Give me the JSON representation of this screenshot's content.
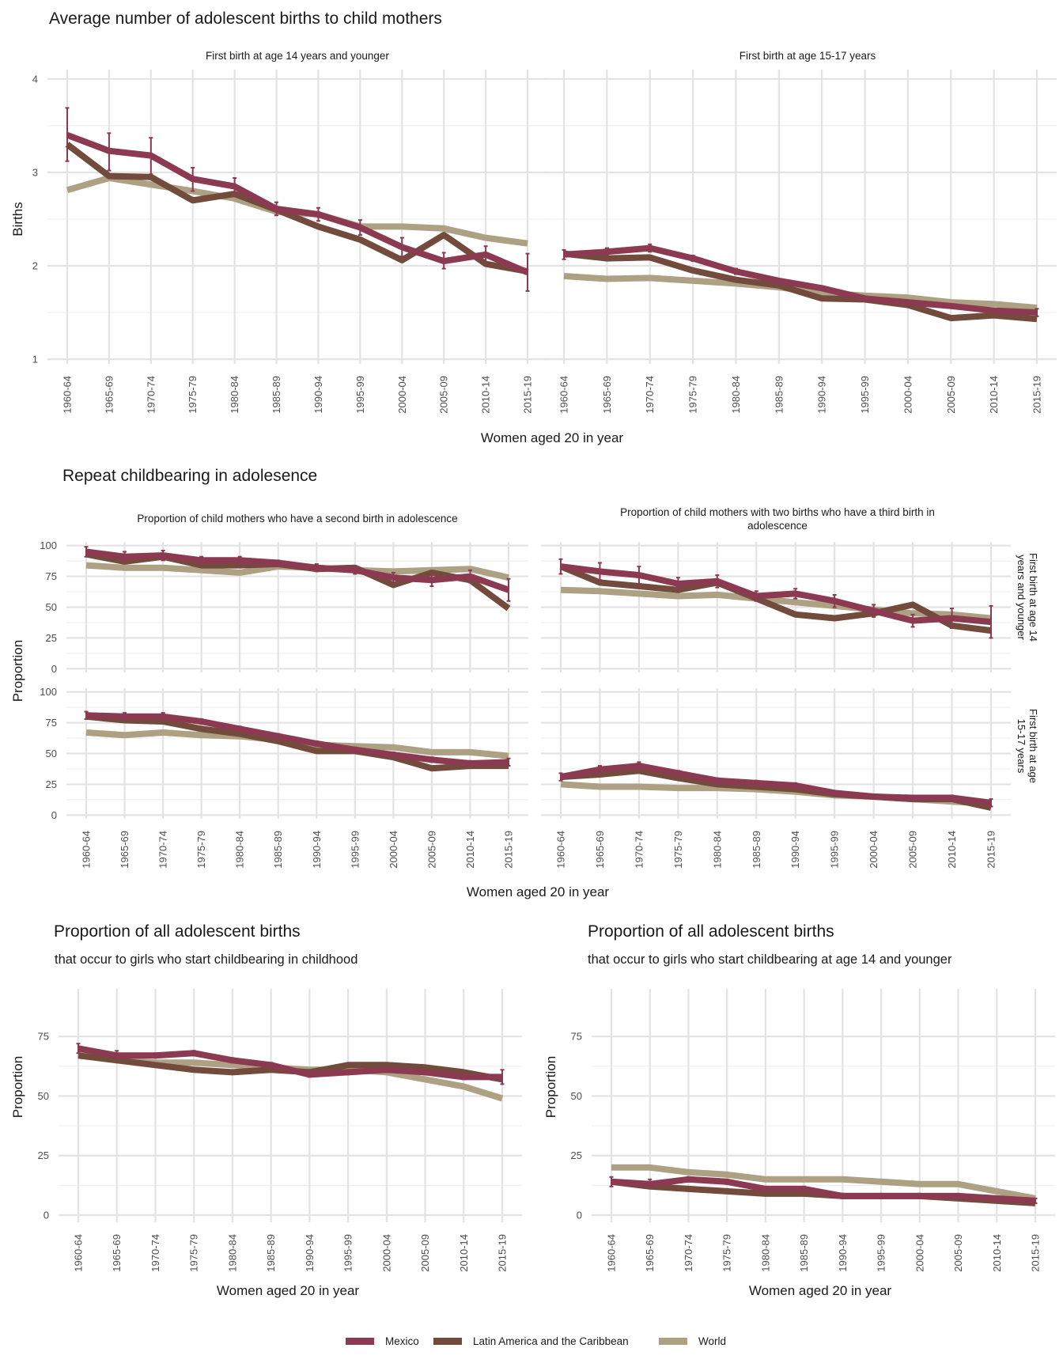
{
  "colors": {
    "mexico": "#8b3a52",
    "lac": "#724b3d",
    "world": "#aea083"
  },
  "legend": [
    {
      "key": "mexico",
      "label": "Mexico"
    },
    {
      "key": "lac",
      "label": "Latin America and the Caribbean"
    },
    {
      "key": "world",
      "label": "World"
    }
  ],
  "categories": [
    "1960-64",
    "1965-69",
    "1970-74",
    "1975-79",
    "1980-84",
    "1985-89",
    "1990-94",
    "1995-99",
    "2000-04",
    "2005-09",
    "2010-14",
    "2015-19"
  ],
  "section1": {
    "title": "Average number of adolescent births to child mothers",
    "ylabel": "Births",
    "xlabel": "Women aged 20 in year",
    "yticks": [
      "1",
      "2",
      "3",
      "4"
    ]
  },
  "section2": {
    "title": "Repeat childbearing in adolesence",
    "ylabel": "Proportion",
    "xlabel": "Women aged 20 in year",
    "yticks": [
      "0",
      "25",
      "50",
      "75",
      "100"
    ],
    "col_titles": [
      "Proportion of child mothers who have a second birth in adolescence",
      "Proportion of child mothers with two births who have a third birth in",
      "adolescence"
    ],
    "row_strips": [
      "First birth at age 14",
      "years and younger",
      "First birth at age",
      "15-17 years"
    ]
  },
  "section3": {
    "ylabel": "Proportion",
    "xlabel": "Women aged 20 in year",
    "yticks": [
      "0",
      "25",
      "50",
      "75"
    ],
    "left_title": "Proportion of all adolescent births",
    "left_subtitle": "that occur to girls who start childbearing in childhood",
    "right_title": "Proportion of all adolescent births",
    "right_subtitle": "that occur to girls who start childbearing at age 14 and younger"
  },
  "chart_data": [
    {
      "type": "line",
      "title": "Average number of adolescent births to child mothers",
      "subtitle": "First birth at age 14 years and younger",
      "xlabel": "Women aged 20 in year",
      "ylabel": "Births",
      "ylim": [
        0.95,
        4.1
      ],
      "series": [
        {
          "name": "Mexico",
          "values": [
            3.4,
            3.23,
            3.18,
            2.93,
            2.85,
            2.61,
            2.55,
            2.41,
            2.2,
            2.05,
            2.12,
            1.93
          ],
          "err_lo": [
            3.12,
            3.02,
            2.98,
            2.8,
            2.75,
            2.54,
            2.48,
            2.33,
            2.1,
            1.97,
            2.04,
            1.73
          ],
          "err_hi": [
            3.69,
            3.42,
            3.37,
            3.05,
            2.94,
            2.68,
            2.62,
            2.49,
            2.3,
            2.14,
            2.21,
            2.13
          ]
        },
        {
          "name": "Latin America and the Caribbean",
          "values": [
            3.3,
            2.96,
            2.95,
            2.7,
            2.77,
            2.6,
            2.42,
            2.28,
            2.06,
            2.33,
            2.02,
            1.94
          ]
        },
        {
          "name": "World",
          "values": [
            2.81,
            2.94,
            2.87,
            2.8,
            2.72,
            2.58,
            2.55,
            2.42,
            2.42,
            2.4,
            2.3,
            2.24
          ]
        }
      ]
    },
    {
      "type": "line",
      "subtitle": "First birth at age 15-17 years",
      "xlabel": "Women aged 20 in year",
      "ylabel": "Births",
      "ylim": [
        0.95,
        4.1
      ],
      "series": [
        {
          "name": "Mexico",
          "values": [
            2.12,
            2.15,
            2.19,
            2.08,
            1.94,
            1.84,
            1.76,
            1.65,
            1.61,
            1.57,
            1.52,
            1.5
          ],
          "err_lo": [
            2.07,
            2.11,
            2.15,
            2.05,
            1.91,
            1.82,
            1.74,
            1.63,
            1.59,
            1.55,
            1.5,
            1.46
          ],
          "err_hi": [
            2.17,
            2.19,
            2.23,
            2.11,
            1.97,
            1.86,
            1.78,
            1.67,
            1.63,
            1.59,
            1.54,
            1.54
          ]
        },
        {
          "name": "Latin America and the Caribbean",
          "values": [
            2.13,
            2.08,
            2.09,
            1.95,
            1.85,
            1.79,
            1.65,
            1.64,
            1.58,
            1.44,
            1.47,
            1.43
          ]
        },
        {
          "name": "World",
          "values": [
            1.89,
            1.86,
            1.87,
            1.84,
            1.81,
            1.77,
            1.71,
            1.68,
            1.66,
            1.61,
            1.59,
            1.55
          ]
        }
      ]
    },
    {
      "type": "line",
      "title": "Repeat childbearing in adolesence",
      "subtitle": "Proportion of child mothers who have a second birth in adolescence — First birth at age 14 years and younger",
      "xlabel": "Women aged 20 in year",
      "ylabel": "Proportion",
      "ylim": [
        -3,
        103
      ],
      "series": [
        {
          "name": "Mexico",
          "values": [
            95,
            91,
            92,
            88,
            88,
            86,
            82,
            80,
            74,
            72,
            75,
            64
          ],
          "err_lo": [
            91,
            87,
            88,
            85,
            85,
            84,
            79,
            77,
            70,
            67,
            70,
            55
          ],
          "err_hi": [
            99,
            95,
            96,
            91,
            91,
            88,
            85,
            83,
            78,
            77,
            80,
            73
          ]
        },
        {
          "name": "Latin America and the Caribbean",
          "values": [
            93,
            87,
            91,
            84,
            84,
            85,
            81,
            82,
            68,
            78,
            72,
            49
          ]
        },
        {
          "name": "World",
          "values": [
            84,
            82,
            82,
            80,
            78,
            83,
            82,
            80,
            79,
            80,
            81,
            74
          ]
        }
      ]
    },
    {
      "type": "line",
      "subtitle": "Proportion of child mothers with two births who have a third birth in adolescence — First birth at age 14 years and younger",
      "xlabel": "Women aged 20 in year",
      "ylabel": "Proportion",
      "ylim": [
        -3,
        103
      ],
      "series": [
        {
          "name": "Mexico",
          "values": [
            83,
            79,
            76,
            69,
            71,
            59,
            61,
            55,
            47,
            39,
            41,
            38
          ],
          "err_lo": [
            77,
            72,
            69,
            64,
            66,
            55,
            57,
            50,
            42,
            34,
            33,
            25
          ],
          "err_hi": [
            89,
            86,
            83,
            74,
            76,
            63,
            65,
            60,
            52,
            44,
            49,
            51
          ]
        },
        {
          "name": "Latin America and the Caribbean",
          "values": [
            83,
            70,
            67,
            64,
            70,
            57,
            44,
            41,
            45,
            52,
            35,
            31
          ]
        },
        {
          "name": "World",
          "values": [
            64,
            63,
            61,
            59,
            60,
            57,
            54,
            51,
            48,
            45,
            44,
            41
          ]
        }
      ]
    },
    {
      "type": "line",
      "subtitle": "Proportion of child mothers who have a second birth in adolescence — First birth at age 15-17 years",
      "xlabel": "Women aged 20 in year",
      "ylabel": "Proportion",
      "ylim": [
        -3,
        103
      ],
      "series": [
        {
          "name": "Mexico",
          "values": [
            81,
            80,
            80,
            76,
            70,
            64,
            58,
            53,
            49,
            45,
            42,
            43
          ],
          "err_lo": [
            78,
            77,
            77,
            74,
            68,
            62,
            56,
            51,
            47,
            43,
            40,
            40
          ],
          "err_hi": [
            84,
            83,
            83,
            78,
            72,
            66,
            60,
            55,
            51,
            47,
            44,
            46
          ]
        },
        {
          "name": "Latin America and the Caribbean",
          "values": [
            80,
            77,
            76,
            70,
            66,
            60,
            52,
            52,
            47,
            38,
            40,
            40
          ]
        },
        {
          "name": "World",
          "values": [
            67,
            65,
            67,
            65,
            64,
            61,
            57,
            56,
            55,
            51,
            51,
            48
          ]
        }
      ]
    },
    {
      "type": "line",
      "subtitle": "Proportion of child mothers with two births who have a third birth in adolescence — First birth at age 15-17 years",
      "xlabel": "Women aged 20 in year",
      "ylabel": "Proportion",
      "ylim": [
        -3,
        103
      ],
      "series": [
        {
          "name": "Mexico",
          "values": [
            31,
            37,
            40,
            34,
            28,
            26,
            24,
            18,
            15,
            14,
            14,
            10
          ],
          "err_lo": [
            28,
            34,
            37,
            32,
            26,
            24,
            22,
            17,
            14,
            13,
            12,
            7
          ],
          "err_hi": [
            34,
            40,
            43,
            36,
            30,
            28,
            26,
            19,
            16,
            15,
            16,
            13
          ]
        },
        {
          "name": "Latin America and the Caribbean",
          "values": [
            31,
            33,
            36,
            30,
            25,
            23,
            21,
            17,
            15,
            13,
            13,
            6
          ]
        },
        {
          "name": "World",
          "values": [
            25,
            23,
            23,
            22,
            22,
            21,
            19,
            16,
            15,
            13,
            11,
            9
          ]
        }
      ]
    },
    {
      "type": "line",
      "title": "Proportion of all adolescent births",
      "subtitle": "that occur to girls who start childbearing in childhood",
      "xlabel": "Women aged 20 in year",
      "ylabel": "Proportion",
      "ylim": [
        -3,
        95
      ],
      "series": [
        {
          "name": "Mexico",
          "values": [
            70,
            67,
            67,
            68,
            65,
            63,
            59,
            60,
            61,
            60,
            58,
            58
          ],
          "err_lo": [
            68,
            66,
            66,
            67,
            64,
            62,
            58,
            59,
            60,
            59,
            57,
            55
          ],
          "err_hi": [
            72,
            69,
            68,
            69,
            66,
            64,
            60,
            61,
            62,
            61,
            59,
            61
          ]
        },
        {
          "name": "Latin America and the Caribbean",
          "values": [
            67,
            65,
            63,
            61,
            60,
            61,
            60,
            63,
            63,
            62,
            60,
            57
          ]
        },
        {
          "name": "World",
          "values": [
            68,
            65,
            64,
            64,
            63,
            62,
            61,
            61,
            60,
            57,
            54,
            49
          ]
        }
      ]
    },
    {
      "type": "line",
      "title": "Proportion of all adolescent births",
      "subtitle": "that occur to girls who start childbearing at age 14 and younger",
      "xlabel": "Women aged 20 in year",
      "ylabel": "Proportion",
      "ylim": [
        -3,
        95
      ],
      "series": [
        {
          "name": "Mexico",
          "values": [
            14,
            13,
            15,
            14,
            11,
            11,
            8,
            8,
            8,
            8,
            7,
            6
          ],
          "err_lo": [
            12,
            12,
            14,
            13,
            10,
            10,
            7,
            7,
            7,
            7,
            6,
            5
          ],
          "err_hi": [
            16,
            15,
            16,
            15,
            12,
            12,
            9,
            9,
            9,
            9,
            8,
            7
          ]
        },
        {
          "name": "Latin America and the Caribbean",
          "values": [
            14,
            12,
            11,
            10,
            9,
            9,
            8,
            8,
            8,
            7,
            6,
            5
          ]
        },
        {
          "name": "World",
          "values": [
            20,
            20,
            18,
            17,
            15,
            15,
            15,
            14,
            13,
            13,
            10,
            7
          ]
        }
      ]
    }
  ]
}
